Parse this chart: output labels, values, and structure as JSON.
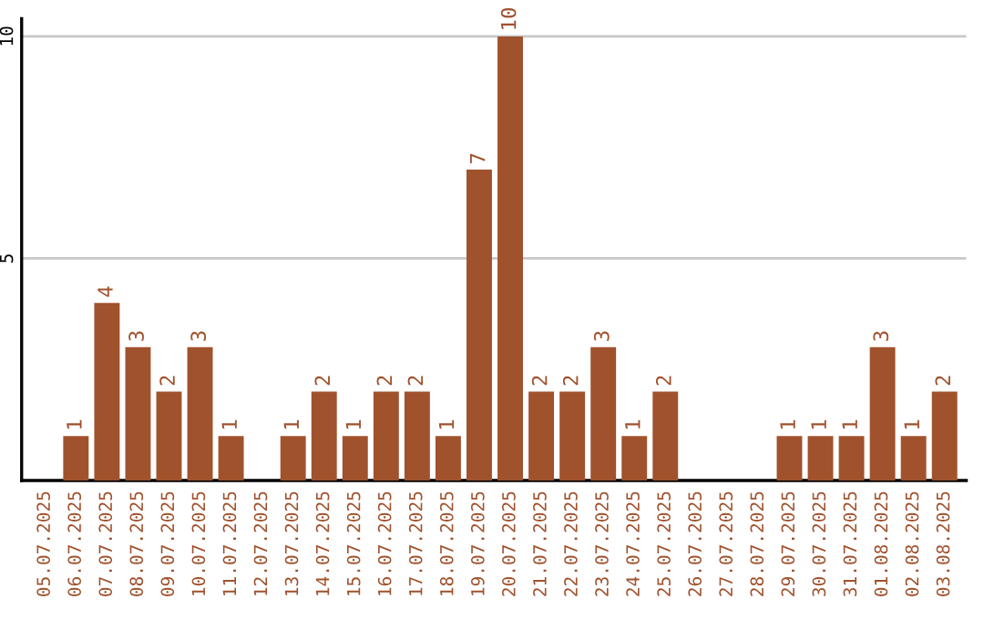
{
  "chart_data": {
    "type": "bar",
    "categories": [
      "05.07.2025",
      "06.07.2025",
      "07.07.2025",
      "08.07.2025",
      "09.07.2025",
      "10.07.2025",
      "11.07.2025",
      "12.07.2025",
      "13.07.2025",
      "14.07.2025",
      "15.07.2025",
      "16.07.2025",
      "17.07.2025",
      "18.07.2025",
      "19.07.2025",
      "20.07.2025",
      "21.07.2025",
      "22.07.2025",
      "23.07.2025",
      "24.07.2025",
      "25.07.2025",
      "26.07.2025",
      "27.07.2025",
      "28.07.2025",
      "29.07.2025",
      "30.07.2025",
      "31.07.2025",
      "01.08.2025",
      "02.08.2025",
      "03.08.2025"
    ],
    "values": [
      0,
      1,
      4,
      3,
      2,
      3,
      1,
      0,
      1,
      2,
      1,
      2,
      2,
      1,
      7,
      10,
      2,
      2,
      3,
      1,
      2,
      0,
      0,
      0,
      1,
      1,
      1,
      3,
      1,
      2
    ],
    "value_labels": [
      null,
      "1",
      "4",
      "3",
      "2",
      "3",
      "1",
      null,
      "1",
      "2",
      "1",
      "2",
      "2",
      "1",
      "7",
      "10",
      "2",
      "2",
      "3",
      "1",
      "2",
      null,
      null,
      null,
      "1",
      "1",
      "1",
      "3",
      "1",
      "2"
    ],
    "color": "#a0522d",
    "ylim": [
      0,
      10.4
    ],
    "yticks": [
      5,
      10
    ],
    "grid": "y",
    "legend": false
  }
}
